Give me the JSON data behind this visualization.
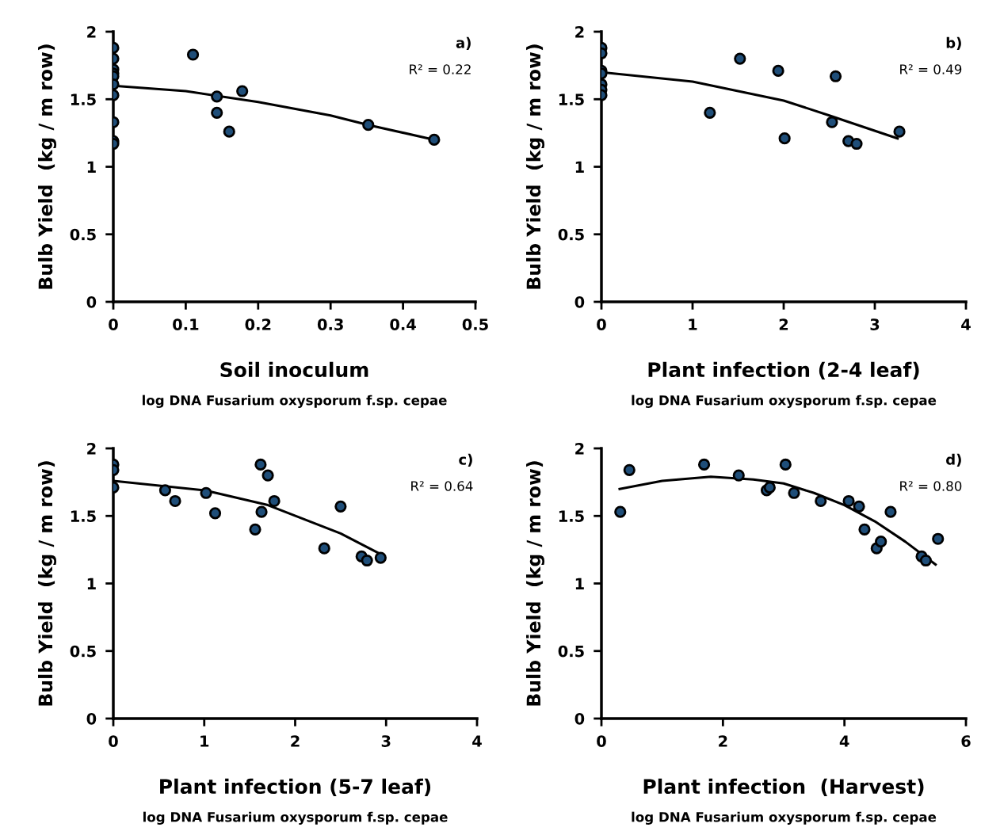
{
  "chart_data": [
    {
      "type": "scatter",
      "xlabel": "Soil inoculum",
      "ylabel": "Bulb Yield  (kg / m row)",
      "annotations": [
        "a)",
        "R² = 0.22",
        "log DNA Fusarium oxysporum f.sp. cepae"
      ],
      "xlim": [
        0,
        0.5
      ],
      "xticks": [
        0,
        0.1,
        0.2,
        0.3,
        0.4,
        0.5
      ],
      "ylim": [
        0,
        2
      ],
      "yticks": [
        0,
        0.5,
        1,
        1.5,
        2
      ],
      "grid": false,
      "legend": false,
      "marker": "circle",
      "series": [
        {
          "color": "#1f4e79",
          "x": [
            0,
            0,
            0,
            0,
            0,
            0,
            0,
            0,
            0,
            0,
            0.11,
            0.143,
            0.143,
            0.16,
            0.178,
            0.352,
            0.443
          ],
          "values": [
            1.88,
            1.8,
            1.72,
            1.69,
            1.67,
            1.61,
            1.53,
            1.33,
            1.19,
            1.17,
            1.83,
            1.52,
            1.4,
            1.26,
            1.56,
            1.31,
            1.2
          ]
        },
        {
          "type": "line",
          "marker": "none",
          "color": "#000000",
          "x": [
            0,
            0.1,
            0.2,
            0.3,
            0.352,
            0.443
          ],
          "values": [
            1.6,
            1.56,
            1.48,
            1.38,
            1.31,
            1.2
          ]
        }
      ]
    },
    {
      "type": "scatter",
      "xlabel": "Plant infection (2-4 leaf)",
      "ylabel": "Bulb Yield  (kg / m row)",
      "annotations": [
        "b)",
        "R² = 0.49",
        "log DNA Fusarium oxysporum f.sp. cepae"
      ],
      "xlim": [
        0,
        4
      ],
      "xticks": [
        0,
        1,
        2,
        3,
        4
      ],
      "ylim": [
        0,
        2
      ],
      "yticks": [
        0,
        0.5,
        1,
        1.5,
        2
      ],
      "grid": false,
      "legend": false,
      "marker": "circle",
      "series": [
        {
          "color": "#1f4e79",
          "x": [
            0,
            0,
            0,
            0,
            0,
            0,
            0,
            1.19,
            1.52,
            1.94,
            2.01,
            2.53,
            2.57,
            2.71,
            2.8,
            3.27
          ],
          "values": [
            1.88,
            1.84,
            1.71,
            1.69,
            1.61,
            1.57,
            1.53,
            1.4,
            1.8,
            1.71,
            1.21,
            1.33,
            1.67,
            1.19,
            1.17,
            1.26
          ]
        },
        {
          "type": "line",
          "marker": "none",
          "color": "#000000",
          "x": [
            0,
            1,
            2,
            2.5,
            3.25
          ],
          "values": [
            1.7,
            1.63,
            1.49,
            1.38,
            1.21
          ]
        }
      ]
    },
    {
      "type": "scatter",
      "xlabel": "Plant infection (5-7 leaf)",
      "ylabel": "Bulb Yield  (kg / m row)",
      "annotations": [
        "c)",
        "R² = 0.64",
        "log DNA Fusarium oxysporum f.sp. cepae"
      ],
      "xlim": [
        0,
        4
      ],
      "xticks": [
        0,
        1,
        2,
        3,
        4
      ],
      "ylim": [
        0,
        2
      ],
      "yticks": [
        0,
        0.5,
        1,
        1.5,
        2
      ],
      "grid": false,
      "legend": false,
      "marker": "circle",
      "series": [
        {
          "color": "#1f4e79",
          "x": [
            0,
            0,
            0,
            0.57,
            0.68,
            1.02,
            1.12,
            1.56,
            1.62,
            1.63,
            1.7,
            1.77,
            2.32,
            2.5,
            2.73,
            2.79,
            2.94
          ],
          "values": [
            1.88,
            1.84,
            1.71,
            1.69,
            1.61,
            1.67,
            1.52,
            1.4,
            1.88,
            1.53,
            1.8,
            1.61,
            1.26,
            1.57,
            1.2,
            1.17,
            1.19
          ]
        },
        {
          "type": "line",
          "marker": "none",
          "color": "#000000",
          "x": [
            0,
            1,
            1.7,
            2.5,
            2.93
          ],
          "values": [
            1.76,
            1.69,
            1.58,
            1.37,
            1.22
          ]
        }
      ]
    },
    {
      "type": "scatter",
      "xlabel": "Plant infection  (Harvest)",
      "ylabel": "Bulb Yield  (kg / m row)",
      "annotations": [
        "d)",
        "R² = 0.80",
        "log DNA Fusarium oxysporum f.sp. cepae"
      ],
      "xlim": [
        0,
        6
      ],
      "xticks": [
        0,
        2,
        4,
        6
      ],
      "ylim": [
        0,
        2
      ],
      "yticks": [
        0,
        0.5,
        1,
        1.5,
        2
      ],
      "grid": false,
      "legend": false,
      "marker": "circle",
      "series": [
        {
          "color": "#1f4e79",
          "x": [
            0.31,
            0.46,
            1.69,
            2.26,
            2.72,
            2.77,
            3.03,
            3.17,
            3.61,
            4.07,
            4.24,
            4.33,
            4.53,
            4.6,
            4.76,
            5.27,
            5.34,
            5.54
          ],
          "values": [
            1.53,
            1.84,
            1.88,
            1.8,
            1.69,
            1.71,
            1.88,
            1.67,
            1.61,
            1.61,
            1.57,
            1.4,
            1.26,
            1.31,
            1.53,
            1.2,
            1.17,
            1.33
          ]
        },
        {
          "type": "line",
          "marker": "none",
          "color": "#000000",
          "x": [
            0.3,
            1,
            1.8,
            2.5,
            3,
            3.5,
            4,
            4.5,
            5,
            5.5
          ],
          "values": [
            1.7,
            1.76,
            1.79,
            1.77,
            1.74,
            1.67,
            1.58,
            1.46,
            1.31,
            1.14
          ]
        }
      ]
    }
  ]
}
